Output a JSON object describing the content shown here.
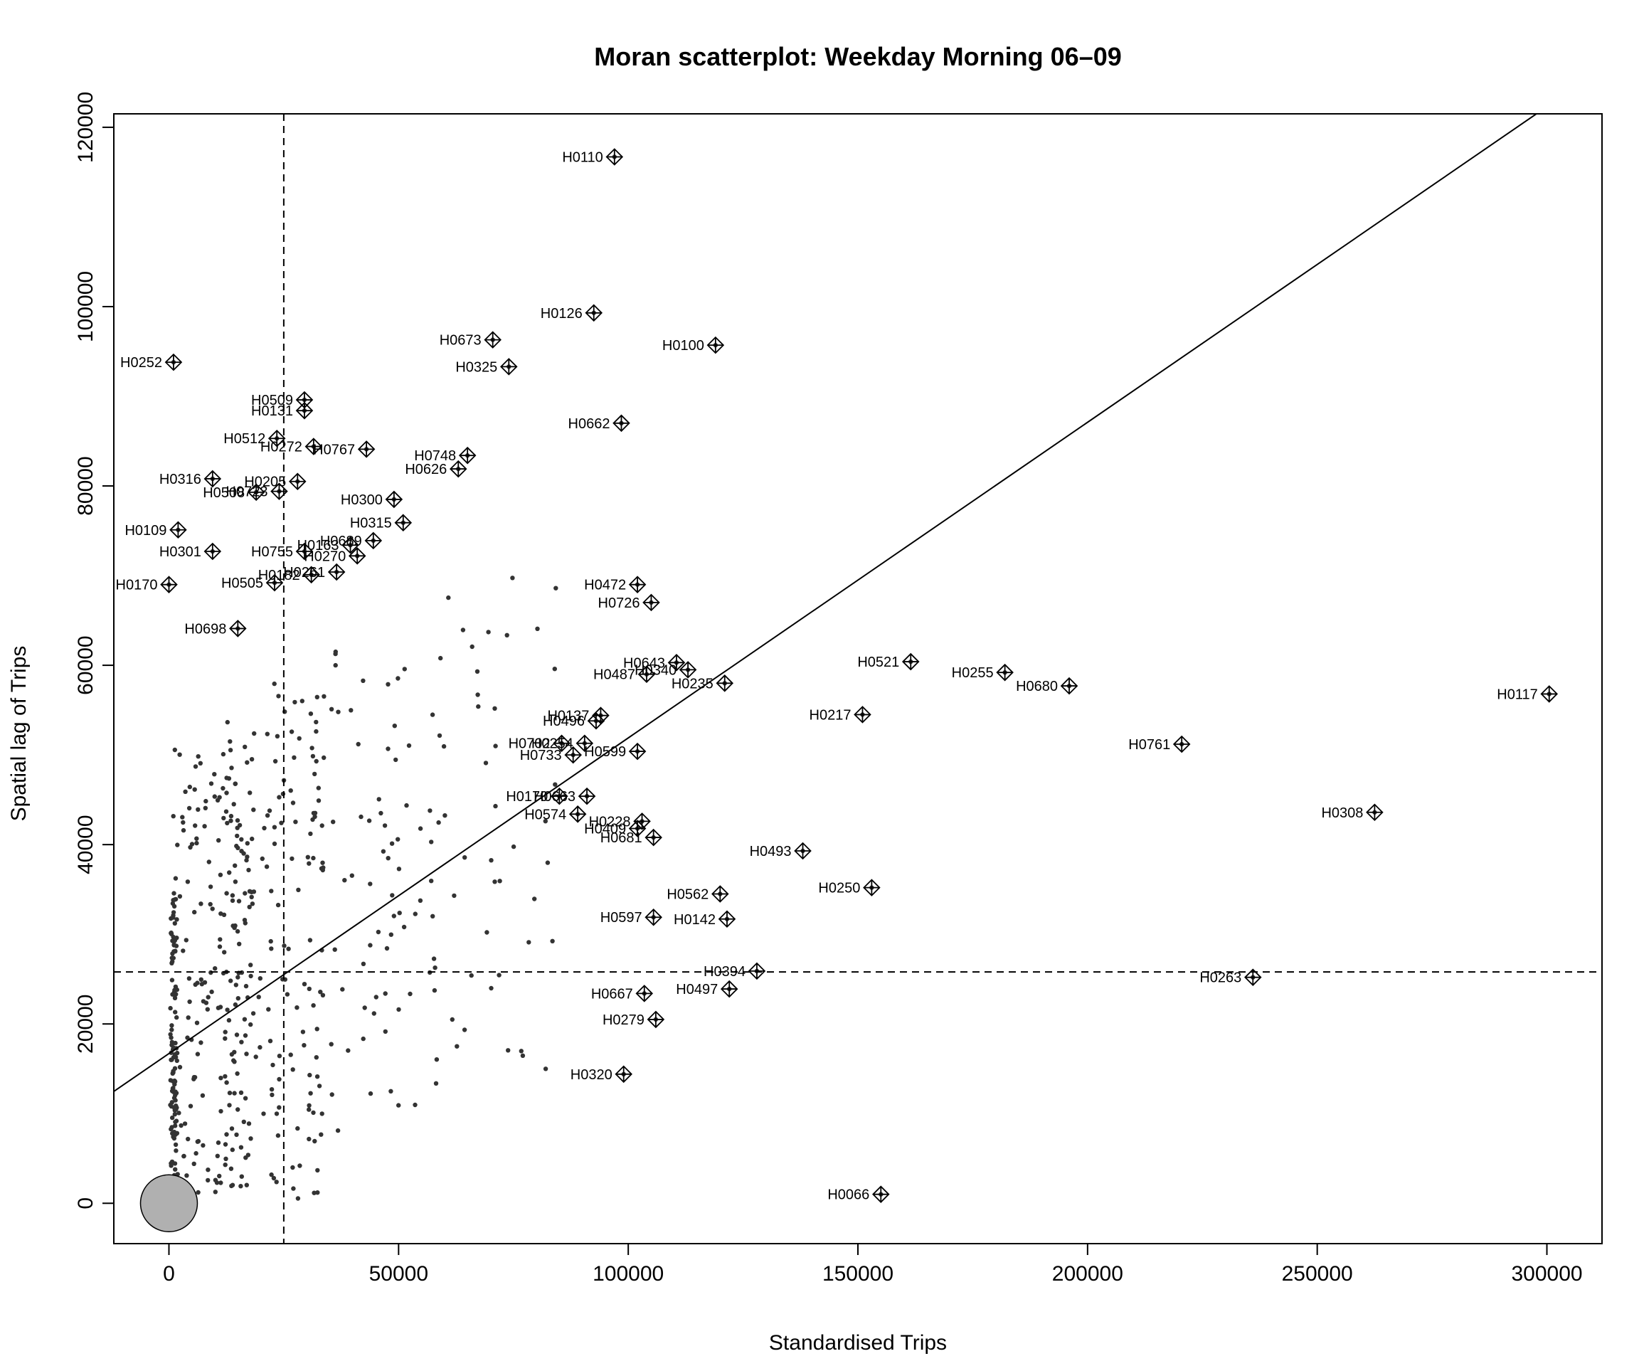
{
  "chart_data": {
    "type": "scatter",
    "title": "Moran scatterplot: Weekday Morning 06–09",
    "xlabel": "Standardised Trips",
    "ylabel": "Spatial lag of Trips",
    "xlim": [
      -12000,
      312000
    ],
    "ylim": [
      -4500,
      121500
    ],
    "x_ticks": [
      0,
      50000,
      100000,
      150000,
      200000,
      250000,
      300000
    ],
    "y_ticks": [
      0,
      20000,
      40000,
      60000,
      80000,
      100000,
      120000
    ],
    "grid": false,
    "legend": "none",
    "reference_lines": {
      "vline_x": 25000,
      "hline_y": 25800
    },
    "regression_line": {
      "intercept": 16700,
      "slope": 0.352
    },
    "zero_cluster": {
      "x": 0,
      "y": 0
    },
    "labeled_points": [
      {
        "id": "H0110",
        "x": 97000,
        "y": 116700
      },
      {
        "id": "H0126",
        "x": 92500,
        "y": 99300
      },
      {
        "id": "H0673",
        "x": 70500,
        "y": 96300
      },
      {
        "id": "H0100",
        "x": 119000,
        "y": 95700
      },
      {
        "id": "H0325",
        "x": 74000,
        "y": 93300
      },
      {
        "id": "H0252",
        "x": 1000,
        "y": 93800
      },
      {
        "id": "H0509",
        "x": 29500,
        "y": 89600
      },
      {
        "id": "H0131",
        "x": 29500,
        "y": 88400
      },
      {
        "id": "H0662",
        "x": 98500,
        "y": 87000
      },
      {
        "id": "H0512",
        "x": 23500,
        "y": 85300
      },
      {
        "id": "H0272",
        "x": 31500,
        "y": 84400
      },
      {
        "id": "H0767",
        "x": 43000,
        "y": 84100
      },
      {
        "id": "H0748",
        "x": 65000,
        "y": 83400
      },
      {
        "id": "H0626",
        "x": 63000,
        "y": 81900
      },
      {
        "id": "H0316",
        "x": 9500,
        "y": 80800
      },
      {
        "id": "H0205",
        "x": 28000,
        "y": 80500
      },
      {
        "id": "H0508",
        "x": 19000,
        "y": 79300
      },
      {
        "id": "H0723",
        "x": 24000,
        "y": 79400
      },
      {
        "id": "H0300",
        "x": 49000,
        "y": 78500
      },
      {
        "id": "H0315",
        "x": 51000,
        "y": 75900
      },
      {
        "id": "H0109",
        "x": 2000,
        "y": 75100
      },
      {
        "id": "H0689",
        "x": 44500,
        "y": 73900
      },
      {
        "id": "H0301",
        "x": 9500,
        "y": 72700
      },
      {
        "id": "H0755",
        "x": 29500,
        "y": 72700
      },
      {
        "id": "H0163",
        "x": 39500,
        "y": 73400
      },
      {
        "id": "H0270",
        "x": 41000,
        "y": 72200
      },
      {
        "id": "H0182",
        "x": 31000,
        "y": 70100
      },
      {
        "id": "H0261",
        "x": 36500,
        "y": 70400
      },
      {
        "id": "H0170",
        "x": 0,
        "y": 69000
      },
      {
        "id": "H0505",
        "x": 23000,
        "y": 69200
      },
      {
        "id": "H0472",
        "x": 102000,
        "y": 69000
      },
      {
        "id": "H0726",
        "x": 105000,
        "y": 67000
      },
      {
        "id": "H0698",
        "x": 15000,
        "y": 64100
      },
      {
        "id": "H0643",
        "x": 110500,
        "y": 60300
      },
      {
        "id": "H0340",
        "x": 113000,
        "y": 59500
      },
      {
        "id": "H0487",
        "x": 104000,
        "y": 59000
      },
      {
        "id": "H0235",
        "x": 121000,
        "y": 58000
      },
      {
        "id": "H0521",
        "x": 161500,
        "y": 60400
      },
      {
        "id": "H0255",
        "x": 182000,
        "y": 59200
      },
      {
        "id": "H0680",
        "x": 196000,
        "y": 57700
      },
      {
        "id": "H0117",
        "x": 300500,
        "y": 56800
      },
      {
        "id": "H0217",
        "x": 151000,
        "y": 54500
      },
      {
        "id": "H0137",
        "x": 94000,
        "y": 54400
      },
      {
        "id": "H0496",
        "x": 93000,
        "y": 53800
      },
      {
        "id": "H0702",
        "x": 85500,
        "y": 51300
      },
      {
        "id": "H0254",
        "x": 90500,
        "y": 51300
      },
      {
        "id": "H0599",
        "x": 102000,
        "y": 50400
      },
      {
        "id": "H0733",
        "x": 88000,
        "y": 50000
      },
      {
        "id": "H0761",
        "x": 220500,
        "y": 51200
      },
      {
        "id": "H0170",
        "x": 85000,
        "y": 45400
      },
      {
        "id": "H0663",
        "x": 91000,
        "y": 45400
      },
      {
        "id": "H0574",
        "x": 89000,
        "y": 43400
      },
      {
        "id": "H0228",
        "x": 103000,
        "y": 42600
      },
      {
        "id": "H0409",
        "x": 102000,
        "y": 41800
      },
      {
        "id": "H0681",
        "x": 105500,
        "y": 40800
      },
      {
        "id": "H0308",
        "x": 262500,
        "y": 43600
      },
      {
        "id": "H0493",
        "x": 138000,
        "y": 39300
      },
      {
        "id": "H0250",
        "x": 153000,
        "y": 35200
      },
      {
        "id": "H0562",
        "x": 120000,
        "y": 34500
      },
      {
        "id": "H0597",
        "x": 105500,
        "y": 31900
      },
      {
        "id": "H0142",
        "x": 121500,
        "y": 31700
      },
      {
        "id": "H0394",
        "x": 128000,
        "y": 25900
      },
      {
        "id": "H0263",
        "x": 236000,
        "y": 25200
      },
      {
        "id": "H0667",
        "x": 103500,
        "y": 23400
      },
      {
        "id": "H0497",
        "x": 122000,
        "y": 23900
      },
      {
        "id": "H0279",
        "x": 106000,
        "y": 20500
      },
      {
        "id": "H0320",
        "x": 99000,
        "y": 14400
      },
      {
        "id": "H0066",
        "x": 155000,
        "y": 1000
      }
    ]
  }
}
